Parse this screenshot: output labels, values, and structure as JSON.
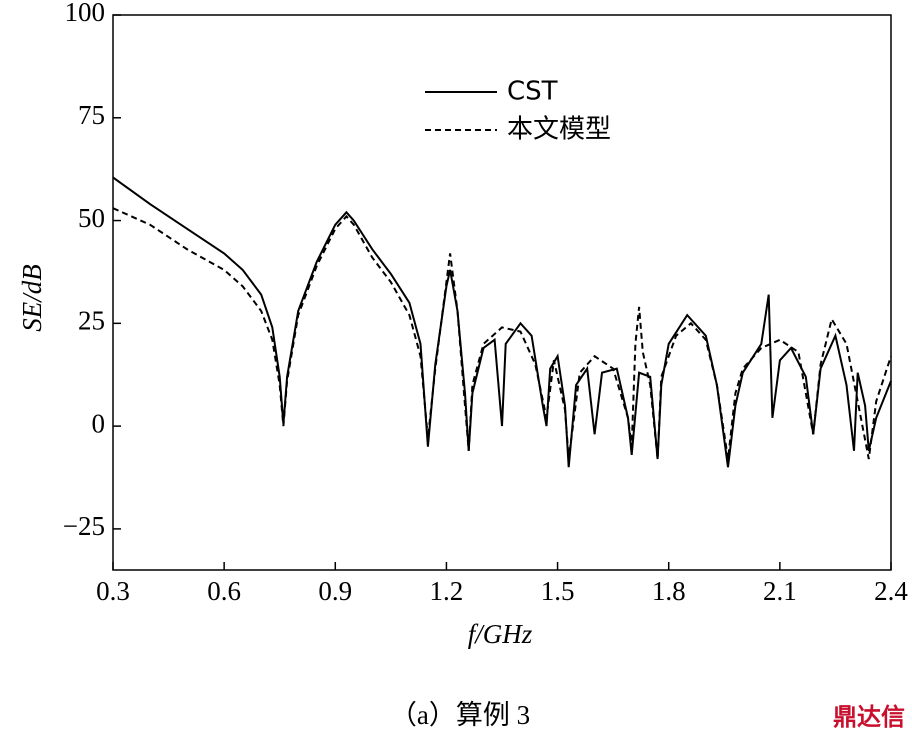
{
  "chart_data": {
    "type": "line",
    "x_label": "f/GHz",
    "y_label": "SE/dB",
    "caption": "（a）算例 3",
    "watermark": "鼎达信",
    "xlim": [
      0.3,
      2.4
    ],
    "xticks": [
      0.3,
      0.6,
      0.9,
      1.2,
      1.5,
      1.8,
      2.1,
      2.4
    ],
    "ylim": [
      -35,
      100
    ],
    "yticks": [
      100,
      75,
      50,
      25,
      0,
      {
        "value": -25,
        "label": "−25"
      }
    ],
    "legend": "upper-center",
    "series": [
      {
        "name": "CST",
        "color": "#000000",
        "dash": false,
        "x": [
          0.3,
          0.4,
          0.5,
          0.6,
          0.65,
          0.7,
          0.73,
          0.75,
          0.76,
          0.77,
          0.8,
          0.85,
          0.9,
          0.93,
          0.95,
          1.0,
          1.05,
          1.1,
          1.13,
          1.15,
          1.17,
          1.2,
          1.21,
          1.23,
          1.25,
          1.26,
          1.27,
          1.3,
          1.33,
          1.35,
          1.36,
          1.4,
          1.43,
          1.46,
          1.47,
          1.48,
          1.5,
          1.52,
          1.53,
          1.55,
          1.58,
          1.6,
          1.62,
          1.66,
          1.69,
          1.7,
          1.72,
          1.75,
          1.77,
          1.78,
          1.8,
          1.85,
          1.9,
          1.93,
          1.96,
          1.98,
          2.0,
          2.05,
          2.07,
          2.08,
          2.1,
          2.13,
          2.17,
          2.19,
          2.21,
          2.25,
          2.28,
          2.3,
          2.31,
          2.33,
          2.34,
          2.36,
          2.4
        ],
        "values": [
          60.5,
          54,
          48,
          42,
          38,
          32,
          24,
          12,
          0.5,
          12,
          28,
          40,
          49,
          52,
          50,
          43,
          37,
          30,
          20,
          -5,
          15,
          34,
          38,
          28,
          8,
          -6,
          8,
          19,
          21,
          0,
          20,
          25,
          22,
          5,
          0,
          14,
          17,
          5,
          -10,
          10,
          14,
          -2,
          13,
          14,
          2,
          -7,
          13,
          12,
          -8,
          10,
          20,
          27,
          22,
          10,
          -10,
          5,
          13,
          20,
          32,
          2,
          16,
          19,
          12,
          -2,
          14,
          22,
          10,
          -6,
          13,
          5,
          -6,
          2,
          11
        ]
      },
      {
        "name": "本文模型",
        "color": "#000000",
        "dash": true,
        "x": [
          0.3,
          0.4,
          0.5,
          0.6,
          0.65,
          0.7,
          0.73,
          0.75,
          0.76,
          0.77,
          0.8,
          0.85,
          0.9,
          0.93,
          0.95,
          1.0,
          1.05,
          1.1,
          1.13,
          1.15,
          1.17,
          1.2,
          1.21,
          1.23,
          1.25,
          1.26,
          1.27,
          1.3,
          1.35,
          1.4,
          1.44,
          1.47,
          1.49,
          1.52,
          1.53,
          1.56,
          1.6,
          1.65,
          1.69,
          1.7,
          1.71,
          1.72,
          1.73,
          1.75,
          1.77,
          1.78,
          1.82,
          1.86,
          1.9,
          1.93,
          1.96,
          1.98,
          2.0,
          2.05,
          2.1,
          2.15,
          2.19,
          2.21,
          2.24,
          2.28,
          2.31,
          2.34,
          2.36,
          2.4
        ],
        "values": [
          53,
          49,
          43,
          38,
          34,
          28,
          21,
          10,
          0,
          11,
          27,
          39,
          48,
          51,
          49,
          41,
          35,
          27,
          17,
          -3,
          14,
          35,
          42,
          28,
          5,
          -6,
          10,
          20,
          24,
          23,
          15,
          2,
          16,
          4,
          -8,
          13,
          17,
          14,
          2,
          -5,
          20,
          29,
          18,
          10,
          -8,
          12,
          22,
          25,
          21,
          10,
          -8,
          8,
          14,
          19,
          21,
          18,
          -2,
          15,
          26,
          20,
          6,
          -8,
          6,
          17
        ]
      }
    ]
  }
}
